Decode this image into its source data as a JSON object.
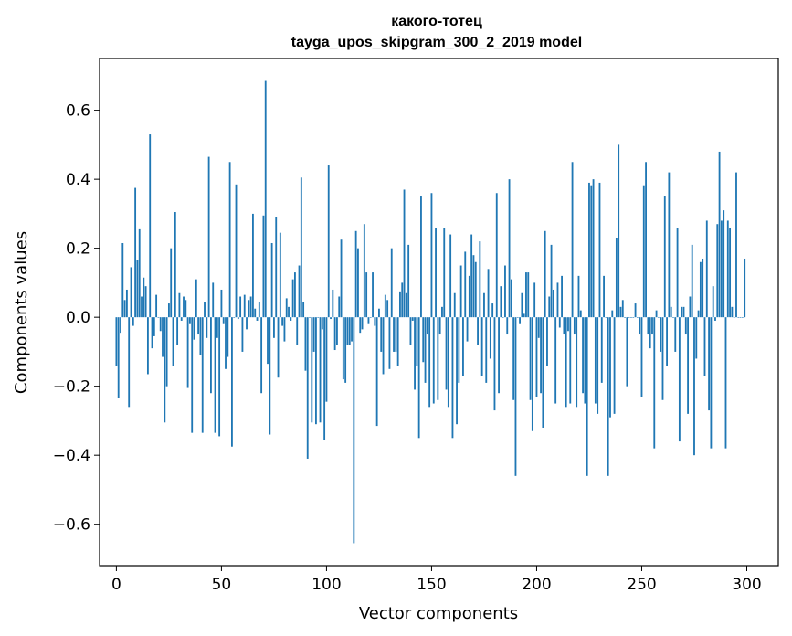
{
  "chart_data": {
    "type": "bar",
    "title": "какого-тотец",
    "subtitle": "tayga_upos_skipgram_300_2_2019 model",
    "xlabel": "Vector components",
    "ylabel": "Components values",
    "xlim": [
      -8,
      315
    ],
    "ylim": [
      -0.72,
      0.75
    ],
    "x_ticks": [
      0,
      50,
      100,
      150,
      200,
      250,
      300
    ],
    "x_tick_labels": [
      "0",
      "50",
      "100",
      "150",
      "200",
      "250",
      "300"
    ],
    "y_ticks": [
      -0.6,
      -0.4,
      -0.2,
      0.0,
      0.2,
      0.4,
      0.6
    ],
    "y_tick_labels": [
      "−0.6",
      "−0.4",
      "−0.2",
      "0.0",
      "0.2",
      "0.4",
      "0.6"
    ],
    "bar_color": "#1f77b4",
    "values": [
      -0.14,
      -0.235,
      -0.045,
      0.215,
      0.05,
      0.08,
      -0.26,
      0.145,
      -0.025,
      0.375,
      0.165,
      0.255,
      0.06,
      0.115,
      0.09,
      -0.165,
      0.53,
      -0.09,
      -0.055,
      0.065,
      0.0,
      -0.04,
      -0.115,
      -0.305,
      -0.2,
      0.04,
      0.2,
      -0.14,
      0.305,
      -0.08,
      0.07,
      -0.01,
      0.06,
      0.05,
      -0.205,
      -0.02,
      -0.335,
      -0.065,
      0.11,
      -0.05,
      -0.11,
      -0.335,
      0.045,
      -0.06,
      0.465,
      -0.22,
      0.1,
      -0.335,
      -0.06,
      -0.345,
      0.08,
      -0.02,
      -0.15,
      -0.115,
      0.45,
      -0.375,
      0.0,
      0.385,
      -0.005,
      0.06,
      -0.1,
      0.065,
      -0.035,
      0.05,
      0.06,
      0.3,
      0.025,
      -0.01,
      0.045,
      -0.22,
      0.295,
      0.685,
      -0.135,
      -0.34,
      0.215,
      -0.06,
      0.29,
      -0.175,
      0.245,
      -0.025,
      -0.07,
      0.055,
      0.03,
      -0.01,
      0.11,
      0.13,
      -0.08,
      0.15,
      0.405,
      0.045,
      -0.155,
      -0.41,
      0.0,
      -0.305,
      -0.1,
      -0.31,
      0.0,
      -0.305,
      -0.035,
      -0.355,
      -0.245,
      0.44,
      -0.005,
      0.08,
      -0.095,
      -0.08,
      0.06,
      0.225,
      -0.18,
      -0.19,
      -0.08,
      -0.08,
      -0.07,
      -0.655,
      0.25,
      0.2,
      -0.045,
      -0.035,
      0.27,
      0.13,
      -0.02,
      0.0,
      0.13,
      -0.025,
      -0.315,
      0.025,
      -0.1,
      -0.165,
      0.065,
      0.05,
      -0.15,
      0.2,
      -0.1,
      -0.1,
      -0.14,
      0.075,
      0.1,
      0.37,
      0.07,
      0.21,
      -0.08,
      -0.01,
      -0.21,
      -0.14,
      -0.35,
      0.35,
      -0.13,
      -0.19,
      -0.05,
      -0.26,
      0.36,
      -0.25,
      0.26,
      -0.24,
      -0.05,
      0.03,
      0.26,
      -0.21,
      -0.26,
      0.24,
      -0.35,
      0.07,
      -0.31,
      -0.19,
      0.15,
      -0.17,
      0.19,
      -0.07,
      0.12,
      0.24,
      0.18,
      0.16,
      -0.08,
      0.22,
      -0.17,
      0.07,
      -0.19,
      0.14,
      -0.12,
      0.04,
      -0.27,
      0.36,
      -0.22,
      0.09,
      0.0,
      0.15,
      -0.05,
      0.4,
      0.11,
      -0.24,
      -0.46,
      0.0,
      -0.02,
      0.07,
      0.01,
      0.13,
      0.13,
      -0.24,
      -0.33,
      0.1,
      -0.23,
      -0.06,
      -0.22,
      -0.32,
      0.25,
      -0.14,
      0.06,
      0.21,
      0.08,
      -0.25,
      0.1,
      -0.03,
      0.12,
      -0.05,
      -0.26,
      -0.04,
      -0.25,
      0.45,
      -0.05,
      -0.26,
      0.12,
      0.02,
      -0.22,
      -0.25,
      -0.46,
      0.39,
      0.38,
      0.4,
      -0.25,
      -0.28,
      0.39,
      -0.19,
      0.12,
      0.0,
      -0.46,
      -0.29,
      0.02,
      -0.28,
      0.23,
      0.5,
      0.03,
      0.05,
      0.0,
      -0.2,
      0.0,
      0.0,
      0.0,
      0.04,
      0.0,
      -0.05,
      -0.23,
      0.38,
      0.45,
      -0.05,
      -0.09,
      -0.05,
      -0.38,
      0.02,
      0.0,
      -0.1,
      -0.24,
      0.35,
      -0.14,
      0.42,
      0.03,
      0.0,
      -0.1,
      0.26,
      -0.36,
      0.03,
      0.03,
      -0.05,
      -0.28,
      0.06,
      0.21,
      -0.4,
      -0.12,
      0.02,
      0.16,
      0.17,
      -0.17,
      0.28,
      -0.27,
      -0.38,
      0.09,
      -0.01,
      0.27,
      0.48,
      0.28,
      0.31,
      -0.38,
      0.28,
      0.26,
      0.03,
      0.0,
      0.42,
      0.0,
      0.0,
      0.0,
      0.17
    ]
  }
}
